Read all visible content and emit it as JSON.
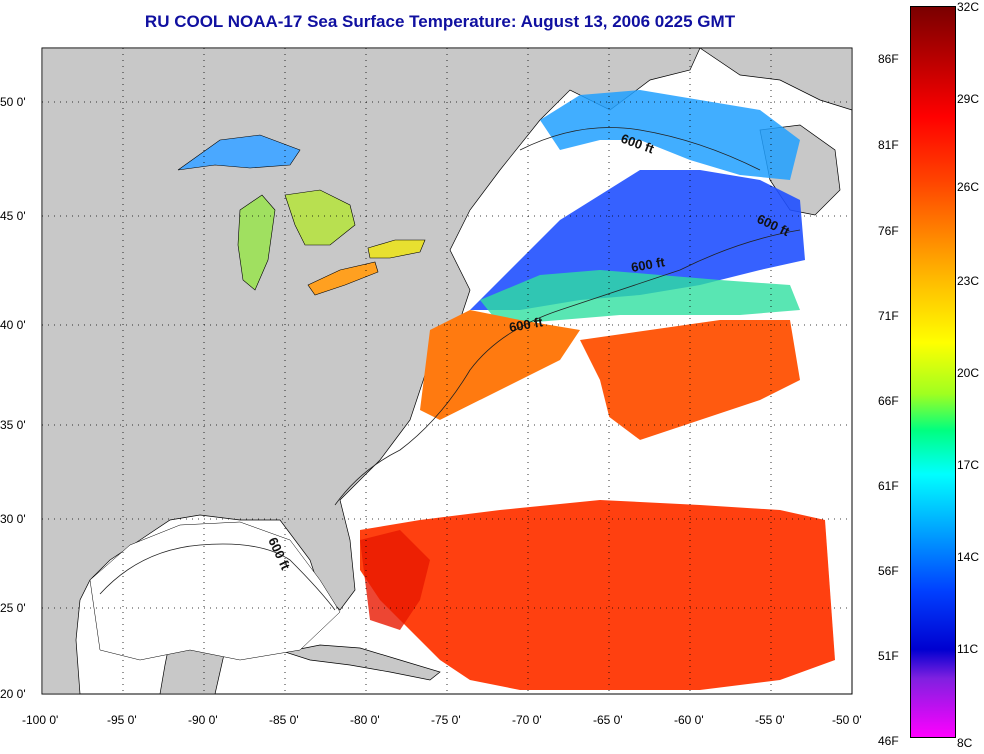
{
  "title": "RU COOL  NOAA-17  Sea Surface Temperature:  August 13, 2006 0225 GMT",
  "lon_ticks": [
    "-100 0'",
    "-95 0'",
    "-90 0'",
    "-85 0'",
    "-80 0'",
    "-75 0'",
    "-70 0'",
    "-65 0'",
    "-60 0'",
    "-55 0'",
    "-50 0'"
  ],
  "lat_ticks": [
    "50 0'",
    "45 0'",
    "40 0'",
    "35 0'",
    "30 0'",
    "25 0'",
    "20 0'"
  ],
  "contour_labels": [
    "600 ft",
    "600 ft",
    "600 ft",
    "600 ft",
    "600 ft"
  ],
  "colorbar": {
    "fahrenheit": [
      "86F",
      "81F",
      "76F",
      "71F",
      "66F",
      "61F",
      "56F",
      "51F",
      "46F"
    ],
    "celsius": [
      "32C",
      "29C",
      "26C",
      "23C",
      "20C",
      "17C",
      "14C",
      "11C",
      "8C"
    ]
  },
  "colors": {
    "land": "#c8c8c8",
    "cloud": "#ffffff",
    "title": "#1010a0",
    "warm": "#ff3000",
    "cool": "#1060ff"
  }
}
